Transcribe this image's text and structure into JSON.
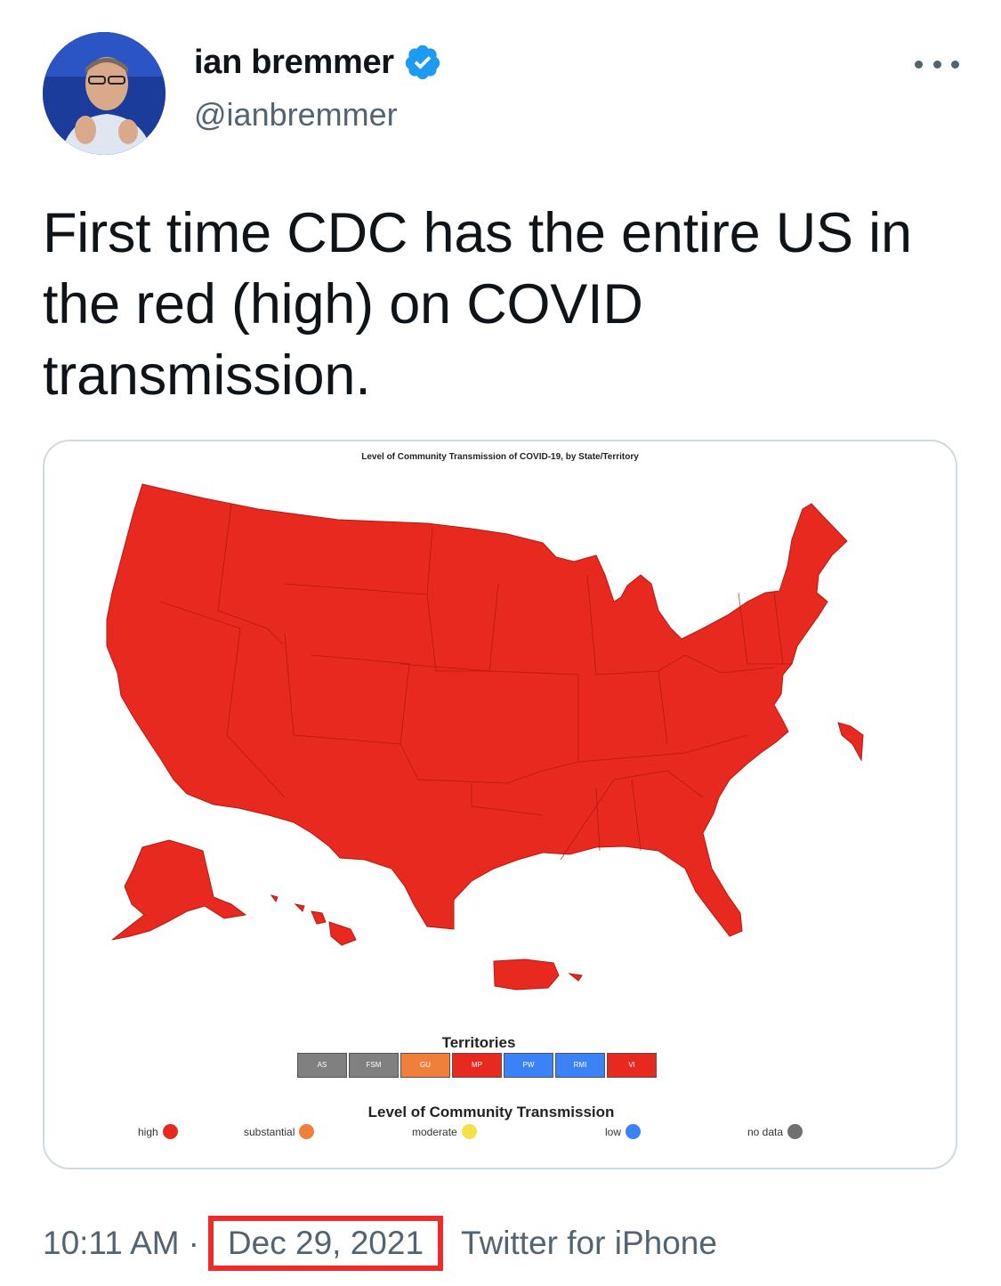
{
  "author": {
    "name": "ian bremmer",
    "handle": "@ianbremmer",
    "verified": true
  },
  "tweet": {
    "text": "First time CDC has the entire US in the red (high) on COVID transmission."
  },
  "media": {
    "map_title": "Level of Community Transmission of COVID-19, by State/Territory",
    "map_fill_color": "#e8291f",
    "territories_title": "Territories",
    "territories": [
      {
        "label": "AS",
        "color": "#808080"
      },
      {
        "label": "FSM",
        "color": "#808080"
      },
      {
        "label": "GU",
        "color": "#f07f3c"
      },
      {
        "label": "MP",
        "color": "#e8291f"
      },
      {
        "label": "PW",
        "color": "#3b82f6"
      },
      {
        "label": "RMI",
        "color": "#3b82f6"
      },
      {
        "label": "VI",
        "color": "#e8291f"
      }
    ],
    "legend_title": "Level of Community Transmission",
    "legend": [
      {
        "label": "high",
        "color": "#e8291f"
      },
      {
        "label": "substantial",
        "color": "#f07f3c"
      },
      {
        "label": "moderate",
        "color": "#f5e04a"
      },
      {
        "label": "low",
        "color": "#3b82f6"
      },
      {
        "label": "no data",
        "color": "#707070"
      }
    ]
  },
  "footer": {
    "time": "10:11 AM",
    "separator": "·",
    "date": "Dec 29, 2021",
    "source": "Twitter for iPhone",
    "highlight_color": "#ee2b2b"
  }
}
